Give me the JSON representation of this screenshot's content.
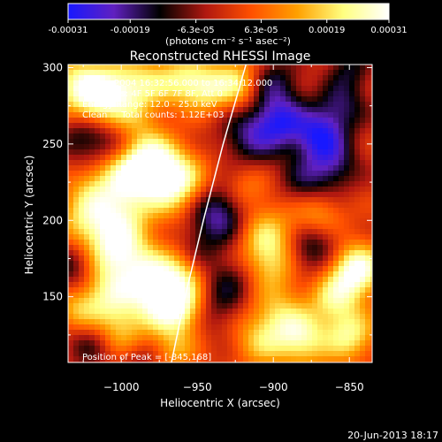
{
  "chart_data": {
    "type": "heatmap",
    "title": "Reconstructed RHESSI Image",
    "xlabel": "Heliocentric X (arcsec)",
    "ylabel": "Heliocentric Y (arcsec)",
    "x_range": [
      -1035,
      -835
    ],
    "y_range": [
      107,
      302
    ],
    "x_ticks": [
      -1000,
      -950,
      -900,
      -850
    ],
    "x_tick_labels": [
      "−1000",
      "−950",
      "−900",
      "−850"
    ],
    "y_ticks": [
      150,
      200,
      250,
      300
    ],
    "y_tick_labels": [
      "150",
      "200",
      "250",
      "300"
    ],
    "colorbar": {
      "range": [
        -0.00031,
        0.00031
      ],
      "ticks": [
        -0.00031,
        -0.00019,
        -6.3e-05,
        6.3e-05,
        0.00019,
        0.00031
      ],
      "tick_labels": [
        "-0.00031",
        "-0.00019",
        "-6.3e-05",
        "6.3e-05",
        "0.00019",
        "0.00031"
      ],
      "unit_label": "(photons cm⁻² s⁻¹ asec⁻²)",
      "colors": [
        "#1818ff",
        "#6020c0",
        "#000000",
        "#b01810",
        "#ff5000",
        "#ffa000",
        "#ffff80",
        "#ffffff"
      ]
    },
    "annotations": [
      "31-Jan-2004 16:32:56.000 to 16:34:12.000",
      "Detectors: 4F 5F 6F 7F 8F, Att 0",
      "Energy Range: 12.0 - 25.0 keV",
      "Clean     Total counts: 1.12E+03"
    ],
    "peak_label": "Position of Peak = [-845,168]",
    "peak": [
      -845,
      168
    ],
    "limb_curve": [
      [
        -967,
        107
      ],
      [
        -958,
        150
      ],
      [
        -946,
        200
      ],
      [
        -933,
        250
      ],
      [
        -918,
        302
      ]
    ],
    "blobs": [
      [
        -1028,
        290,
        0.6,
        14
      ],
      [
        -1015,
        278,
        0.7,
        14
      ],
      [
        -1002,
        286,
        0.4,
        12
      ],
      [
        -985,
        290,
        0.5,
        12
      ],
      [
        -960,
        292,
        0.6,
        12
      ],
      [
        -945,
        286,
        0.5,
        10
      ],
      [
        -925,
        290,
        0.7,
        12
      ],
      [
        -990,
        264,
        0.3,
        12
      ],
      [
        -995,
        232,
        0.8,
        14
      ],
      [
        -980,
        240,
        0.6,
        12
      ],
      [
        -965,
        225,
        1.0,
        14
      ],
      [
        -1020,
        220,
        0.4,
        12
      ],
      [
        -1000,
        205,
        0.6,
        14
      ],
      [
        -1025,
        198,
        0.5,
        12
      ],
      [
        -1005,
        180,
        0.8,
        14
      ],
      [
        -985,
        170,
        0.4,
        12
      ],
      [
        -960,
        165,
        0.5,
        12
      ],
      [
        -1010,
        150,
        0.7,
        14
      ],
      [
        -975,
        150,
        0.9,
        14
      ],
      [
        -960,
        140,
        0.6,
        12
      ],
      [
        -1030,
        140,
        0.4,
        10
      ],
      [
        -1000,
        125,
        0.5,
        12
      ],
      [
        -965,
        115,
        0.4,
        10
      ],
      [
        -920,
        220,
        0.4,
        12
      ],
      [
        -905,
        190,
        0.6,
        14
      ],
      [
        -900,
        170,
        0.5,
        12
      ],
      [
        -895,
        135,
        0.6,
        14
      ],
      [
        -910,
        120,
        0.4,
        12
      ],
      [
        -870,
        200,
        0.7,
        12
      ],
      [
        -860,
        150,
        0.6,
        12
      ],
      [
        -845,
        168,
        1.0,
        12
      ],
      [
        -850,
        125,
        0.7,
        12
      ],
      [
        -880,
        120,
        0.6,
        12
      ],
      [
        -935,
        205,
        -0.8,
        14
      ],
      [
        -915,
        255,
        -0.6,
        14
      ],
      [
        -895,
        265,
        -0.7,
        12
      ],
      [
        -870,
        255,
        -0.8,
        12
      ],
      [
        -860,
        235,
        -0.5,
        12
      ],
      [
        -880,
        225,
        -0.4,
        12
      ],
      [
        -900,
        290,
        -0.5,
        12
      ],
      [
        -855,
        275,
        -0.5,
        12
      ],
      [
        -870,
        190,
        -0.6,
        12
      ],
      [
        -880,
        175,
        -0.3,
        12
      ],
      [
        -930,
        160,
        -0.4,
        12
      ],
      [
        -1025,
        255,
        -0.5,
        12
      ],
      [
        -1005,
        250,
        -0.4,
        12
      ],
      [
        -1030,
        170,
        -0.5,
        12
      ],
      [
        -950,
        180,
        -0.3,
        10
      ],
      [
        -1020,
        120,
        -0.4,
        12
      ],
      [
        -940,
        140,
        -0.3,
        12
      ],
      [
        -990,
        110,
        -0.3,
        10
      ],
      [
        -850,
        300,
        -0.4,
        10
      ]
    ]
  },
  "footer": {
    "date": "20-Jun-2013 18:17"
  }
}
